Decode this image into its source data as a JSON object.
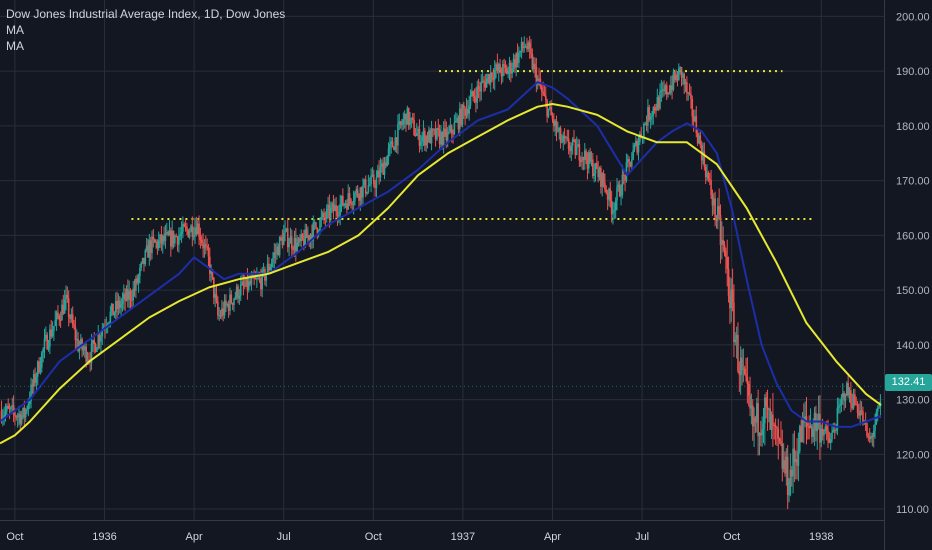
{
  "legend": {
    "title": "Dow Jones Industrial Average Index, 1D, Dow Jones",
    "ma1": "MA",
    "ma2": "MA"
  },
  "price_label": {
    "text": "132.41",
    "color": "#26a69a"
  },
  "colors": {
    "background": "#131722",
    "grid": "#2a2e39",
    "up": "#26a69a",
    "down": "#ef5350",
    "ma_fast": "#1c2ea8",
    "ma_slow": "#e6e92e",
    "levels": "#e6e92e"
  },
  "chart_data": {
    "type": "candlestick",
    "title": "Dow Jones Industrial Average Index, 1D, Dow Jones",
    "ylim": [
      108,
      203
    ],
    "yticks": [
      110,
      120,
      130,
      140,
      150,
      160,
      170,
      180,
      190,
      200
    ],
    "ytick_labels": [
      "110.00",
      "120.00",
      "130.00",
      "140.00",
      "150.00",
      "160.00",
      "170.00",
      "180.00",
      "190.00",
      "200.00"
    ],
    "xlim": [
      0,
      29.6
    ],
    "xticks": [
      {
        "x": 0.5,
        "label": "Oct"
      },
      {
        "x": 3.5,
        "label": "1936"
      },
      {
        "x": 6.5,
        "label": "Apr"
      },
      {
        "x": 9.5,
        "label": "Jul"
      },
      {
        "x": 12.5,
        "label": "Oct"
      },
      {
        "x": 15.5,
        "label": "1937"
      },
      {
        "x": 18.5,
        "label": "Apr"
      },
      {
        "x": 21.5,
        "label": "Jul"
      },
      {
        "x": 24.5,
        "label": "Oct"
      },
      {
        "x": 27.5,
        "label": "1938"
      }
    ],
    "x_unit": "months from September 1935",
    "path": [
      [
        0,
        128
      ],
      [
        0.8,
        127
      ],
      [
        1.5,
        140
      ],
      [
        2.2,
        148
      ],
      [
        2.6,
        140
      ],
      [
        3.0,
        138
      ],
      [
        3.6,
        145
      ],
      [
        4.5,
        150
      ],
      [
        5.0,
        158
      ],
      [
        6.0,
        160
      ],
      [
        6.6,
        162
      ],
      [
        7.0,
        155
      ],
      [
        7.3,
        145
      ],
      [
        8.0,
        150
      ],
      [
        8.8,
        152
      ],
      [
        9.5,
        160
      ],
      [
        10.0,
        158
      ],
      [
        11.0,
        164
      ],
      [
        12.0,
        168
      ],
      [
        12.6,
        170
      ],
      [
        13.6,
        182
      ],
      [
        14.0,
        178
      ],
      [
        15.0,
        178
      ],
      [
        15.8,
        185
      ],
      [
        16.5,
        190
      ],
      [
        17.0,
        190
      ],
      [
        17.6,
        195
      ],
      [
        18.2,
        185
      ],
      [
        18.8,
        177
      ],
      [
        19.5,
        175
      ],
      [
        20.2,
        170
      ],
      [
        20.5,
        165
      ],
      [
        21.0,
        172
      ],
      [
        21.7,
        182
      ],
      [
        22.4,
        187
      ],
      [
        22.8,
        190
      ],
      [
        23.3,
        180
      ],
      [
        23.8,
        168
      ],
      [
        24.3,
        155
      ],
      [
        24.7,
        138
      ],
      [
        25.2,
        125
      ],
      [
        25.6,
        128
      ],
      [
        26.0,
        122
      ],
      [
        26.4,
        115
      ],
      [
        26.9,
        125
      ],
      [
        27.4,
        126
      ],
      [
        27.8,
        122
      ],
      [
        28.3,
        132
      ],
      [
        28.8,
        128
      ],
      [
        29.1,
        122
      ],
      [
        29.5,
        129
      ]
    ],
    "series": [
      {
        "name": "MA",
        "type": "line",
        "points": [
          [
            0,
            126
          ],
          [
            1,
            130
          ],
          [
            2,
            137
          ],
          [
            3,
            141
          ],
          [
            4,
            145
          ],
          [
            5,
            149
          ],
          [
            6,
            153
          ],
          [
            6.5,
            156
          ],
          [
            7,
            154
          ],
          [
            7.5,
            152
          ],
          [
            8,
            153
          ],
          [
            9,
            153
          ],
          [
            10,
            157
          ],
          [
            11,
            162
          ],
          [
            12,
            165
          ],
          [
            13,
            168
          ],
          [
            14,
            172
          ],
          [
            15,
            177
          ],
          [
            16,
            181
          ],
          [
            17,
            183
          ],
          [
            17.6,
            186
          ],
          [
            18.0,
            188
          ],
          [
            18.5,
            187
          ],
          [
            19,
            185
          ],
          [
            20,
            180
          ],
          [
            21,
            171
          ],
          [
            21.5,
            174
          ],
          [
            22,
            177
          ],
          [
            22.5,
            179
          ],
          [
            23,
            180.5
          ],
          [
            23.5,
            179
          ],
          [
            24,
            175
          ],
          [
            24.5,
            165
          ],
          [
            25,
            152
          ],
          [
            25.5,
            140
          ],
          [
            26,
            133
          ],
          [
            26.5,
            128
          ],
          [
            27,
            126
          ],
          [
            27.5,
            126
          ],
          [
            28,
            125
          ],
          [
            28.5,
            125
          ],
          [
            29,
            126
          ],
          [
            29.5,
            127
          ]
        ]
      },
      {
        "name": "MA",
        "type": "line",
        "points": [
          [
            0,
            122
          ],
          [
            0.5,
            123.5
          ],
          [
            1,
            126
          ],
          [
            2,
            132
          ],
          [
            3,
            137
          ],
          [
            4,
            141
          ],
          [
            5,
            145
          ],
          [
            6,
            148
          ],
          [
            7,
            150.5
          ],
          [
            8,
            152
          ],
          [
            9,
            153
          ],
          [
            10,
            155
          ],
          [
            11,
            157
          ],
          [
            12,
            160
          ],
          [
            13,
            165
          ],
          [
            14,
            171
          ],
          [
            15,
            175
          ],
          [
            16,
            178
          ],
          [
            17,
            181
          ],
          [
            18,
            183.5
          ],
          [
            18.5,
            184
          ],
          [
            19,
            183.5
          ],
          [
            20,
            182
          ],
          [
            21,
            179
          ],
          [
            22,
            177
          ],
          [
            23,
            177
          ],
          [
            24,
            173
          ],
          [
            25,
            165
          ],
          [
            26,
            155
          ],
          [
            27,
            144
          ],
          [
            28,
            137
          ],
          [
            29,
            131
          ],
          [
            29.5,
            129
          ]
        ]
      }
    ],
    "levels": [
      {
        "value": 190,
        "x0": 14.7,
        "x1": 26.2
      },
      {
        "value": 163,
        "x0": 4.4,
        "x1": 27.2
      }
    ],
    "last_value": 132.41
  }
}
